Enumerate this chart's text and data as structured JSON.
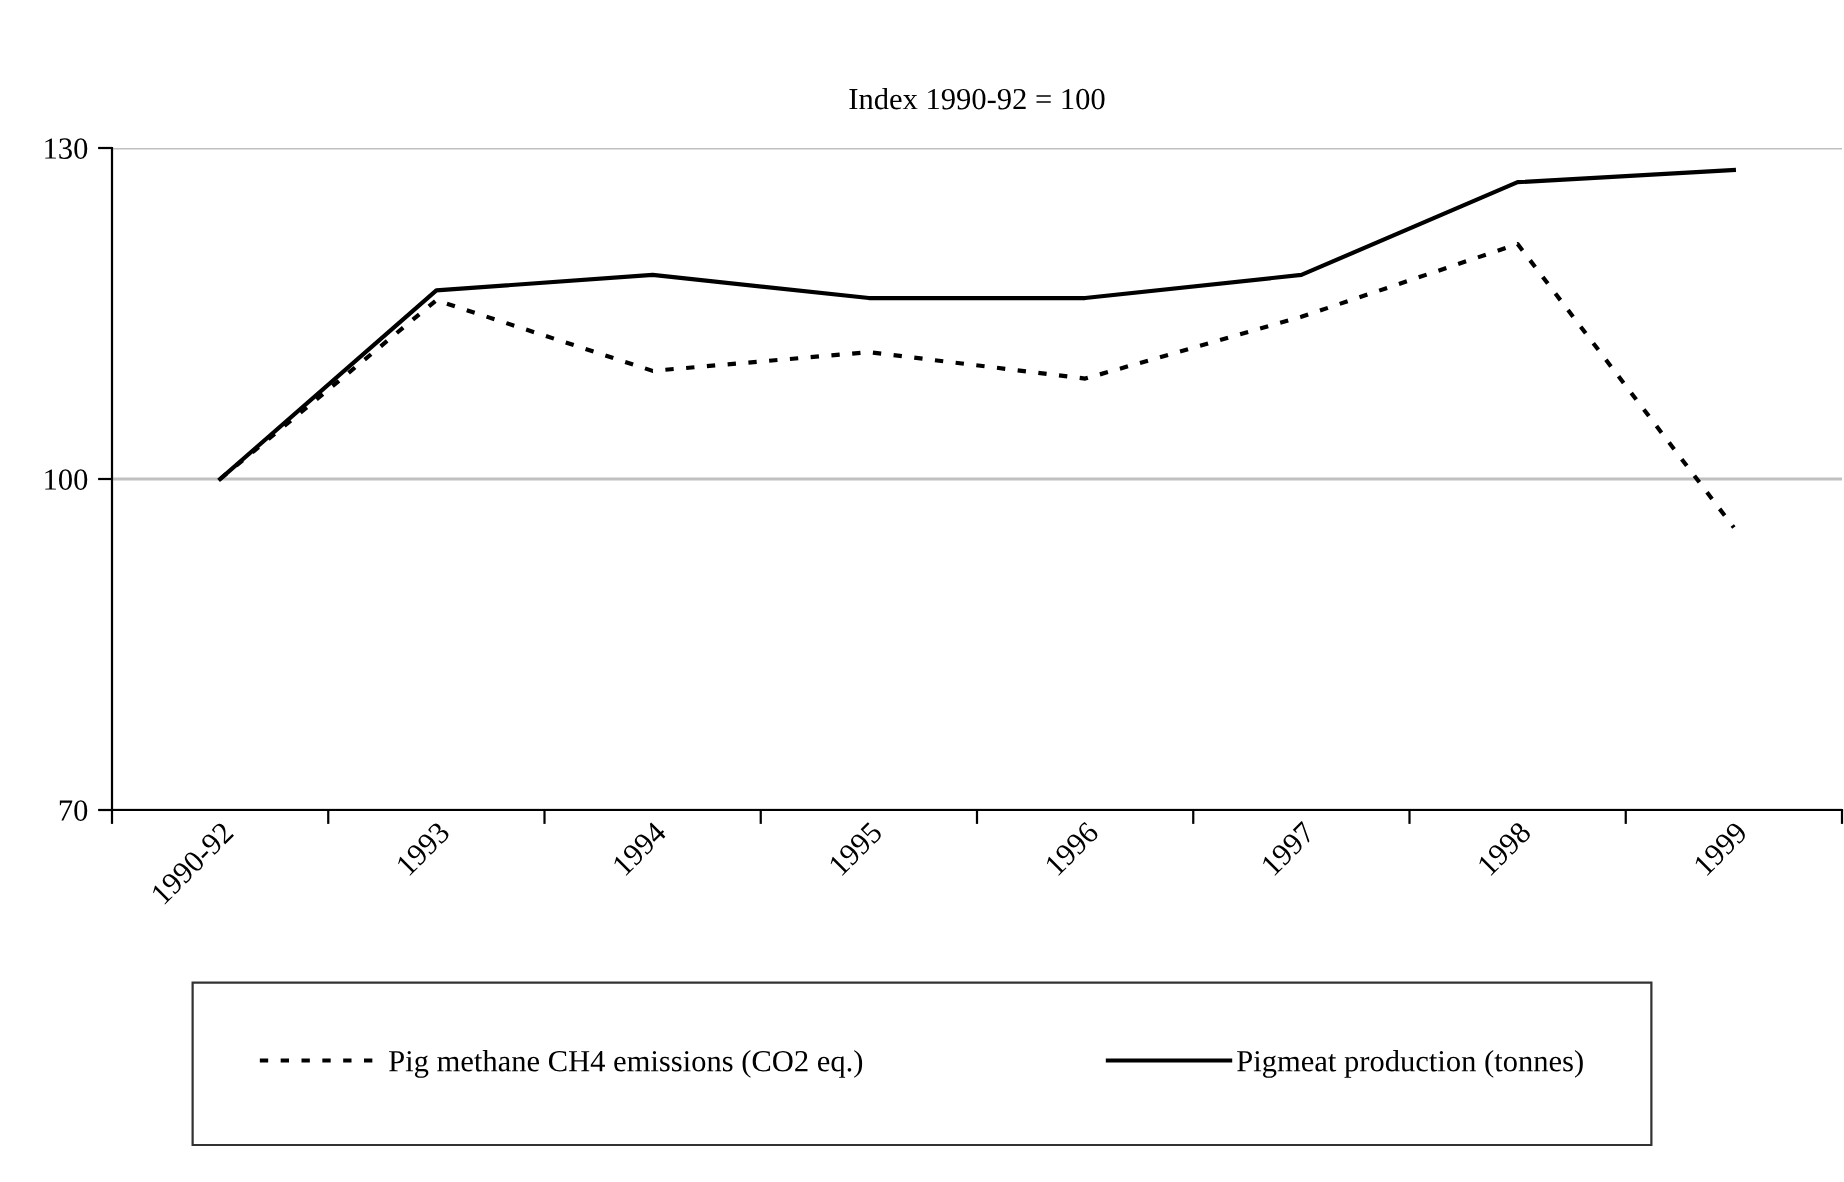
{
  "chart_data": {
    "type": "line",
    "title": "Index 1990-92 = 100",
    "categories": [
      "1990-92",
      "1993",
      "1994",
      "1995",
      "1996",
      "1997",
      "1998",
      "1999"
    ],
    "series": [
      {
        "name": "Pig methane CH4 emissions (CO2 eq.)",
        "color": "#000000",
        "line_style": "dotted",
        "values": [
          100,
          116.2,
          109.8,
          111.5,
          109.1,
          114.7,
          121.3,
          95.6
        ]
      },
      {
        "name": "Pigmeat production (tonnes)",
        "color": "#000000",
        "line_style": "solid",
        "values": [
          100,
          117.1,
          118.5,
          116.4,
          116.4,
          118.5,
          126.9,
          128.0
        ]
      }
    ],
    "ylim": [
      70,
      130
    ],
    "yticks": [
      70,
      100,
      130
    ],
    "grid": "y",
    "legend": "bottom",
    "marker": "none"
  }
}
